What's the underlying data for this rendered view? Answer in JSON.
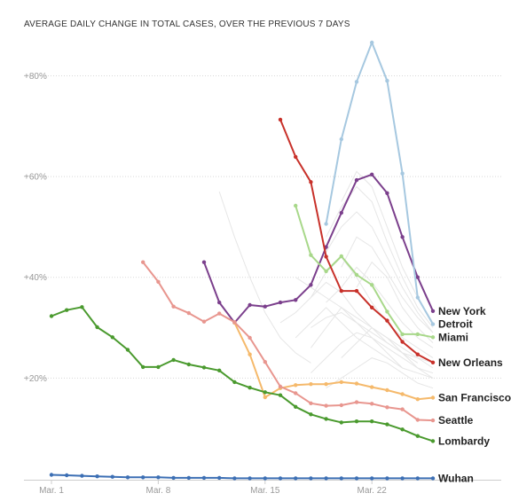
{
  "chart_data": {
    "type": "line",
    "title": "AVERAGE DAILY CHANGE IN TOTAL CASES, OVER THE PREVIOUS 7 DAYS",
    "xlabel": "",
    "ylabel": "",
    "x_ticks": [
      {
        "day": 0,
        "label": "Mar. 1"
      },
      {
        "day": 7,
        "label": "Mar. 8"
      },
      {
        "day": 14,
        "label": "Mar. 15"
      },
      {
        "day": 21,
        "label": "Mar. 22"
      }
    ],
    "y_ticks": [
      {
        "value": 20,
        "label": "+20%"
      },
      {
        "value": 40,
        "label": "+40%"
      },
      {
        "value": 60,
        "label": "+60%"
      },
      {
        "value": 80,
        "label": "+80%"
      }
    ],
    "xlim": [
      0,
      25
    ],
    "ylim": [
      0,
      88
    ],
    "grid": true,
    "background_series_color": "#e6e6e6",
    "background_series": [
      [
        [
          11,
          57
        ],
        [
          12,
          48
        ],
        [
          13,
          40
        ],
        [
          14,
          33
        ],
        [
          15,
          28
        ],
        [
          16,
          25
        ],
        [
          17,
          23
        ]
      ],
      [
        [
          16,
          40
        ],
        [
          17,
          38
        ],
        [
          18,
          36
        ],
        [
          19,
          34
        ],
        [
          20,
          31
        ],
        [
          21,
          28
        ],
        [
          22,
          25
        ],
        [
          23,
          22
        ]
      ],
      [
        [
          17,
          36
        ],
        [
          18,
          41
        ],
        [
          19,
          44
        ],
        [
          20,
          40
        ],
        [
          21,
          35
        ],
        [
          22,
          31
        ],
        [
          23,
          28
        ],
        [
          24,
          26
        ],
        [
          25,
          24
        ]
      ],
      [
        [
          17,
          30
        ],
        [
          18,
          32
        ],
        [
          19,
          33
        ],
        [
          20,
          31
        ],
        [
          21,
          29
        ],
        [
          22,
          27
        ],
        [
          23,
          25
        ],
        [
          24,
          23
        ]
      ],
      [
        [
          18,
          48
        ],
        [
          19,
          54
        ],
        [
          20,
          58
        ],
        [
          21,
          55
        ],
        [
          22,
          47
        ],
        [
          23,
          40
        ],
        [
          24,
          34
        ],
        [
          25,
          30
        ]
      ],
      [
        [
          18,
          45
        ],
        [
          19,
          50
        ],
        [
          20,
          53
        ],
        [
          21,
          50
        ],
        [
          22,
          44
        ],
        [
          23,
          38
        ],
        [
          24,
          33
        ],
        [
          25,
          29
        ]
      ],
      [
        [
          19,
          55
        ],
        [
          20,
          61
        ],
        [
          21,
          58
        ],
        [
          22,
          50
        ],
        [
          23,
          42
        ],
        [
          24,
          36
        ],
        [
          25,
          31
        ]
      ],
      [
        [
          17,
          26
        ],
        [
          18,
          30
        ],
        [
          19,
          34
        ],
        [
          20,
          32
        ],
        [
          21,
          30
        ],
        [
          22,
          28
        ],
        [
          23,
          26
        ],
        [
          24,
          24
        ],
        [
          25,
          23
        ]
      ],
      [
        [
          18,
          35
        ],
        [
          19,
          38
        ],
        [
          20,
          42
        ],
        [
          21,
          39
        ],
        [
          22,
          35
        ],
        [
          23,
          31
        ],
        [
          24,
          28
        ],
        [
          25,
          26
        ]
      ],
      [
        [
          19,
          42
        ],
        [
          20,
          48
        ],
        [
          21,
          46
        ],
        [
          22,
          41
        ],
        [
          23,
          36
        ],
        [
          24,
          32
        ],
        [
          25,
          29
        ]
      ],
      [
        [
          16,
          28
        ],
        [
          17,
          31
        ],
        [
          18,
          34
        ],
        [
          19,
          31
        ],
        [
          20,
          28
        ],
        [
          21,
          26
        ],
        [
          22,
          24
        ],
        [
          23,
          22
        ],
        [
          24,
          21
        ],
        [
          25,
          20
        ]
      ],
      [
        [
          17,
          21
        ],
        [
          18,
          24
        ],
        [
          19,
          27
        ],
        [
          20,
          29
        ],
        [
          21,
          28
        ],
        [
          22,
          26
        ],
        [
          23,
          24
        ],
        [
          24,
          22
        ],
        [
          25,
          21
        ]
      ],
      [
        [
          19,
          24
        ],
        [
          20,
          27
        ],
        [
          21,
          30
        ],
        [
          22,
          28
        ],
        [
          23,
          25
        ],
        [
          24,
          22
        ],
        [
          25,
          20
        ]
      ],
      [
        [
          18,
          18
        ],
        [
          19,
          20
        ],
        [
          20,
          22
        ],
        [
          21,
          24
        ],
        [
          22,
          23
        ],
        [
          23,
          21
        ],
        [
          24,
          19
        ],
        [
          25,
          18
        ]
      ],
      [
        [
          20,
          38
        ],
        [
          21,
          43
        ],
        [
          22,
          40
        ],
        [
          23,
          34
        ],
        [
          24,
          30
        ],
        [
          25,
          27
        ]
      ],
      [
        [
          15,
          31
        ],
        [
          16,
          33
        ],
        [
          17,
          36
        ],
        [
          18,
          39
        ],
        [
          19,
          37
        ],
        [
          20,
          33
        ],
        [
          21,
          30
        ],
        [
          22,
          27
        ],
        [
          23,
          25
        ],
        [
          24,
          24
        ],
        [
          25,
          22
        ]
      ]
    ],
    "series": [
      {
        "name": "New York",
        "color": "#7b3f8c",
        "points": [
          [
            10,
            43
          ],
          [
            11,
            35
          ],
          [
            12,
            31
          ],
          [
            13,
            34.5
          ],
          [
            14,
            34.2
          ],
          [
            15,
            35
          ],
          [
            16,
            35.5
          ],
          [
            17,
            38.5
          ],
          [
            18,
            46
          ],
          [
            19,
            52.8
          ],
          [
            20,
            59.3
          ],
          [
            21,
            60.4
          ],
          [
            22,
            56.7
          ],
          [
            23,
            48
          ],
          [
            24,
            40
          ],
          [
            25,
            33.3
          ]
        ]
      },
      {
        "name": "Detroit",
        "color": "#a6c8e0",
        "points": [
          [
            18,
            50.6
          ],
          [
            19,
            67.4
          ],
          [
            20,
            78.8
          ],
          [
            21,
            86.6
          ],
          [
            22,
            79
          ],
          [
            23,
            60.6
          ],
          [
            24,
            36
          ],
          [
            25,
            30.7
          ]
        ]
      },
      {
        "name": "Miami",
        "color": "#a8d88a",
        "points": [
          [
            16,
            54.2
          ],
          [
            17,
            44.4
          ],
          [
            18,
            41.2
          ],
          [
            19,
            44.2
          ],
          [
            20,
            40.5
          ],
          [
            21,
            38.5
          ],
          [
            22,
            33.2
          ],
          [
            23,
            28.7
          ],
          [
            24,
            28.7
          ],
          [
            25,
            28.1
          ]
        ]
      },
      {
        "name": "New Orleans",
        "color": "#c8312a",
        "points": [
          [
            15,
            71.3
          ],
          [
            16,
            63.9
          ],
          [
            17,
            58.9
          ],
          [
            18,
            44.1
          ],
          [
            19,
            37.3
          ],
          [
            20,
            37.3
          ],
          [
            21,
            34
          ],
          [
            22,
            31.4
          ],
          [
            23,
            27.2
          ],
          [
            24,
            24.7
          ],
          [
            25,
            23.1
          ]
        ]
      },
      {
        "name": "San Francisco",
        "color": "#f5b96b",
        "points": [
          [
            12,
            31
          ],
          [
            13,
            24.7
          ],
          [
            14,
            16.2
          ],
          [
            15,
            18
          ],
          [
            16,
            18.6
          ],
          [
            17,
            18.8
          ],
          [
            18,
            18.8
          ],
          [
            19,
            19.2
          ],
          [
            20,
            18.9
          ],
          [
            21,
            18.2
          ],
          [
            22,
            17.6
          ],
          [
            23,
            16.8
          ],
          [
            24,
            15.8
          ],
          [
            25,
            16.1
          ]
        ]
      },
      {
        "name": "Seattle",
        "color": "#e8968f",
        "points": [
          [
            6,
            43
          ],
          [
            7,
            39.1
          ],
          [
            8,
            34.2
          ],
          [
            9,
            32.9
          ],
          [
            10,
            31.2
          ],
          [
            11,
            32.8
          ],
          [
            12,
            31.1
          ],
          [
            13,
            28
          ],
          [
            14,
            23.2
          ],
          [
            15,
            18.3
          ],
          [
            16,
            17
          ],
          [
            17,
            15
          ],
          [
            18,
            14.5
          ],
          [
            19,
            14.6
          ],
          [
            20,
            15.2
          ],
          [
            21,
            14.9
          ],
          [
            22,
            14.2
          ],
          [
            23,
            13.8
          ],
          [
            24,
            11.7
          ],
          [
            25,
            11.6
          ]
        ]
      },
      {
        "name": "Lombardy",
        "color": "#4a9a2e",
        "points": [
          [
            0,
            32.3
          ],
          [
            1,
            33.5
          ],
          [
            2,
            34.1
          ],
          [
            3,
            30.1
          ],
          [
            4,
            28.1
          ],
          [
            5,
            25.6
          ],
          [
            6,
            22.2
          ],
          [
            7,
            22.2
          ],
          [
            8,
            23.6
          ],
          [
            9,
            22.7
          ],
          [
            10,
            22.1
          ],
          [
            11,
            21.5
          ],
          [
            12,
            19.2
          ],
          [
            13,
            18.1
          ],
          [
            14,
            17.2
          ],
          [
            15,
            16.6
          ],
          [
            16,
            14.3
          ],
          [
            17,
            12.8
          ],
          [
            18,
            11.9
          ],
          [
            19,
            11.2
          ],
          [
            20,
            11.4
          ],
          [
            21,
            11.4
          ],
          [
            22,
            10.8
          ],
          [
            23,
            9.8
          ],
          [
            24,
            8.5
          ],
          [
            25,
            7.5
          ]
        ]
      },
      {
        "name": "Wuhan",
        "color": "#3c6fb4",
        "points": [
          [
            0,
            0.8
          ],
          [
            1,
            0.7
          ],
          [
            2,
            0.6
          ],
          [
            3,
            0.5
          ],
          [
            4,
            0.4
          ],
          [
            5,
            0.3
          ],
          [
            6,
            0.3
          ],
          [
            7,
            0.3
          ],
          [
            8,
            0.2
          ],
          [
            9,
            0.2
          ],
          [
            10,
            0.2
          ],
          [
            11,
            0.2
          ],
          [
            12,
            0.1
          ],
          [
            13,
            0.1
          ],
          [
            14,
            0.1
          ],
          [
            15,
            0.1
          ],
          [
            16,
            0.1
          ],
          [
            17,
            0.1
          ],
          [
            18,
            0.1
          ],
          [
            19,
            0.1
          ],
          [
            20,
            0.1
          ],
          [
            21,
            0.1
          ],
          [
            22,
            0.1
          ],
          [
            23,
            0.1
          ],
          [
            24,
            0.1
          ],
          [
            25,
            0.1
          ]
        ]
      }
    ]
  }
}
